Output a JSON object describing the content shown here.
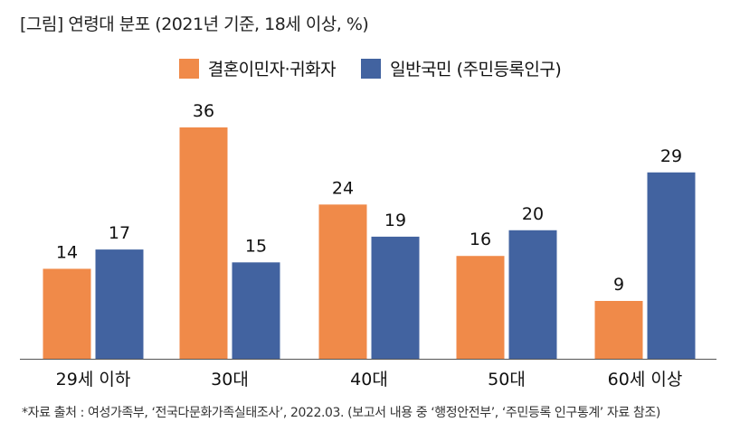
{
  "header": {
    "title": "[그림] 연령대 분포 (2021년 기준, 18세 이상, %)"
  },
  "footnote": "*자료 출처 : 여성가족부, ‘전국다문화가족실태조사’, 2022.03. (보고서 내용 중 ‘행정안전부’, ‘주민등록 인구통계’ 자료 참조)",
  "colors": {
    "series_1": "#F08A49",
    "series_2": "#4263A0",
    "axis": "#555555"
  },
  "chart_data": {
    "type": "bar",
    "title": "[그림] 연령대 분포 (2021년 기준, 18세 이상, %)",
    "xlabel": "",
    "ylabel": "",
    "ylim": [
      0,
      36
    ],
    "legend_position": "top-center",
    "grid": false,
    "categories": [
      "29세 이하",
      "30대",
      "40대",
      "50대",
      "60세 이상"
    ],
    "series": [
      {
        "name": "결혼이민자·귀화자",
        "values": [
          14,
          36,
          24,
          16,
          9
        ]
      },
      {
        "name": "일반국민 (주민등록인구)",
        "values": [
          17,
          15,
          19,
          20,
          29
        ]
      }
    ]
  }
}
